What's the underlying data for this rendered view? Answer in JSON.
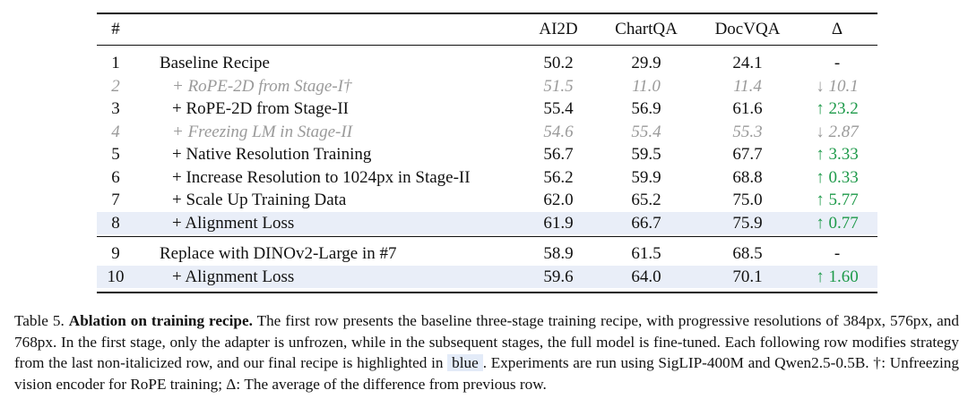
{
  "table": {
    "headers": {
      "num": "#",
      "recipe": "",
      "ai2d": "AI2D",
      "chartqa": "ChartQA",
      "docvqa": "DocVQA",
      "delta": "Δ"
    },
    "rows": [
      {
        "num": "1",
        "recipe": "Baseline Recipe",
        "ai2d": "50.2",
        "chartqa": "29.9",
        "docvqa": "24.1",
        "delta": "-",
        "style": "normal"
      },
      {
        "num": "2",
        "recipe": "+ RoPE-2D from Stage-I†",
        "ai2d": "51.5",
        "chartqa": "11.0",
        "docvqa": "11.4",
        "delta": "↓ 10.1",
        "style": "gray"
      },
      {
        "num": "3",
        "recipe": "+ RoPE-2D from Stage-II",
        "ai2d": "55.4",
        "chartqa": "56.9",
        "docvqa": "61.6",
        "delta": "↑ 23.2",
        "style": "normal"
      },
      {
        "num": "4",
        "recipe": "+ Freezing LM in Stage-II",
        "ai2d": "54.6",
        "chartqa": "55.4",
        "docvqa": "55.3",
        "delta": "↓ 2.87",
        "style": "gray"
      },
      {
        "num": "5",
        "recipe": "+ Native Resolution Training",
        "ai2d": "56.7",
        "chartqa": "59.5",
        "docvqa": "67.7",
        "delta": "↑ 3.33",
        "style": "normal"
      },
      {
        "num": "6",
        "recipe": "+ Increase Resolution to 1024px in Stage-II",
        "ai2d": "56.2",
        "chartqa": "59.9",
        "docvqa": "68.8",
        "delta": "↑ 0.33",
        "style": "normal"
      },
      {
        "num": "7",
        "recipe": "+ Scale Up Training Data",
        "ai2d": "62.0",
        "chartqa": "65.2",
        "docvqa": "75.0",
        "delta": "↑ 5.77",
        "style": "normal"
      },
      {
        "num": "8",
        "recipe": "+ Alignment Loss",
        "ai2d": "61.9",
        "chartqa": "66.7",
        "docvqa": "75.9",
        "delta": "↑ 0.77",
        "style": "highlight"
      },
      {
        "num": "9",
        "recipe": "Replace with DINOv2-Large in #7",
        "ai2d": "58.9",
        "chartqa": "61.5",
        "docvqa": "68.5",
        "delta": "-",
        "style": "normal"
      },
      {
        "num": "10",
        "recipe": "+ Alignment Loss",
        "ai2d": "59.6",
        "chartqa": "64.0",
        "docvqa": "70.1",
        "delta": "↑ 1.60",
        "style": "highlight"
      }
    ]
  },
  "caption": {
    "label": "Table 5.",
    "bold_title": "Ablation on training recipe.",
    "text_before_blue": "The first row presents the baseline three-stage training recipe, with progressive resolutions of 384px, 576px, and 768px. In the first stage, only the adapter is unfrozen, while in the subsequent stages, the full model is fine-tuned. Each following row modifies strategy from the last non-italicized row, and our final recipe is highlighted in",
    "blue_word": "blue",
    "text_after_blue": ". Experiments are run using SigLIP-400M and Qwen2.5-0.5B. †: Unfreezing vision encoder for RoPE training; Δ: The average of the difference from previous row."
  },
  "colors": {
    "highlight": "#e9eef8",
    "up": "#1e9a4a",
    "gray": "#9a9a9a"
  }
}
